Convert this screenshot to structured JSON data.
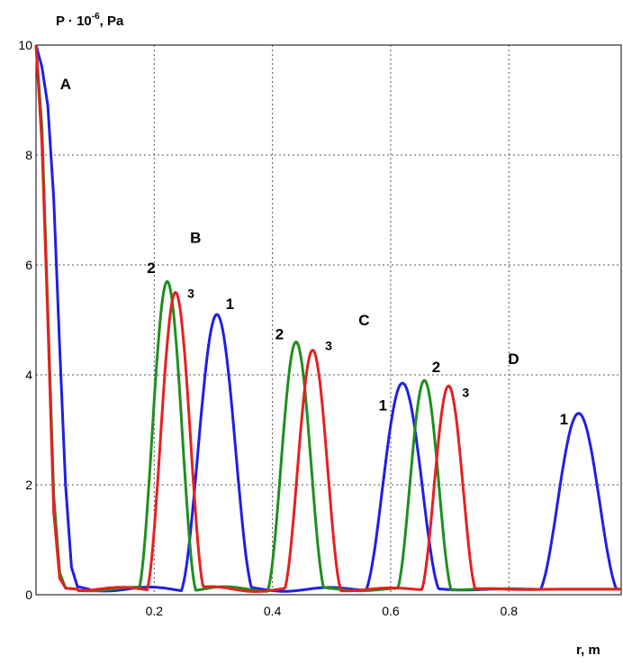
{
  "chart_data": {
    "type": "line",
    "title": "",
    "ylabel_base": "P · 10",
    "ylabel_exp": "-6",
    "ylabel_unit": ", Pa",
    "xlabel": "r, m",
    "xlim": [
      0,
      0.99
    ],
    "ylim": [
      0,
      10
    ],
    "grid": true,
    "xticks": [
      0.2,
      0.4,
      0.6,
      0.8
    ],
    "xtick_labels": [
      "0.2",
      "0.4",
      "0.6",
      "0.8"
    ],
    "yticks": [
      0,
      2,
      4,
      6,
      8,
      10
    ],
    "ytick_labels": [
      "0",
      "2",
      "4",
      "6",
      "8",
      "10"
    ],
    "baseline": 0.1,
    "series": [
      {
        "name": "1",
        "color": "#1f1fe6",
        "initial": {
          "decay_to": 0.08,
          "points": [
            [
              0.0,
              10.0
            ],
            [
              0.01,
              9.6
            ],
            [
              0.02,
              8.9
            ],
            [
              0.03,
              7.2
            ],
            [
              0.04,
              4.5
            ],
            [
              0.05,
              2.0
            ],
            [
              0.06,
              0.5
            ],
            [
              0.07,
              0.15
            ],
            [
              0.09,
              0.1
            ]
          ]
        },
        "pulses": [
          {
            "center": 0.306,
            "peak": 5.1,
            "halfwidth": 0.065
          },
          {
            "center": 0.62,
            "peak": 3.85,
            "halfwidth": 0.068
          },
          {
            "center": 0.918,
            "peak": 3.3,
            "halfwidth": 0.072
          }
        ]
      },
      {
        "name": "2",
        "color": "#1e8f1e",
        "initial": {
          "decay_to": 0.1,
          "points": [
            [
              0.0,
              10.0
            ],
            [
              0.01,
              8.5
            ],
            [
              0.02,
              5.2
            ],
            [
              0.03,
              1.8
            ],
            [
              0.04,
              0.4
            ],
            [
              0.05,
              0.12
            ],
            [
              0.07,
              0.1
            ]
          ]
        },
        "pulses": [
          {
            "center": 0.222,
            "peak": 5.7,
            "halfwidth": 0.052
          },
          {
            "center": 0.44,
            "peak": 4.6,
            "halfwidth": 0.052
          },
          {
            "center": 0.657,
            "peak": 3.9,
            "halfwidth": 0.05
          }
        ]
      },
      {
        "name": "3",
        "color": "#e62020",
        "initial": {
          "decay_to": 0.1,
          "points": [
            [
              0.0,
              10.0
            ],
            [
              0.01,
              8.2
            ],
            [
              0.02,
              5.0
            ],
            [
              0.03,
              1.5
            ],
            [
              0.04,
              0.3
            ],
            [
              0.05,
              0.12
            ],
            [
              0.07,
              0.1
            ]
          ]
        },
        "pulses": [
          {
            "center": 0.236,
            "peak": 5.5,
            "halfwidth": 0.052
          },
          {
            "center": 0.468,
            "peak": 4.45,
            "halfwidth": 0.052
          },
          {
            "center": 0.698,
            "peak": 3.8,
            "halfwidth": 0.05
          }
        ]
      }
    ],
    "annotations": [
      {
        "text": "A",
        "x": 0.05,
        "y": 9.2,
        "style": "big"
      },
      {
        "text": "B",
        "x": 0.27,
        "y": 6.4,
        "style": "big"
      },
      {
        "text": "C",
        "x": 0.555,
        "y": 4.9,
        "style": "big"
      },
      {
        "text": "D",
        "x": 0.808,
        "y": 4.2,
        "style": "big"
      },
      {
        "text": "2",
        "x": 0.195,
        "y": 5.85,
        "style": "big"
      },
      {
        "text": "3",
        "x": 0.262,
        "y": 5.4,
        "style": "small"
      },
      {
        "text": "1",
        "x": 0.328,
        "y": 5.2,
        "style": "big"
      },
      {
        "text": "2",
        "x": 0.412,
        "y": 4.65,
        "style": "big"
      },
      {
        "text": "3",
        "x": 0.495,
        "y": 4.45,
        "style": "small"
      },
      {
        "text": "1",
        "x": 0.587,
        "y": 3.35,
        "style": "big"
      },
      {
        "text": "2",
        "x": 0.677,
        "y": 4.05,
        "style": "big"
      },
      {
        "text": "3",
        "x": 0.727,
        "y": 3.6,
        "style": "small"
      },
      {
        "text": "1",
        "x": 0.893,
        "y": 3.1,
        "style": "big"
      }
    ]
  }
}
